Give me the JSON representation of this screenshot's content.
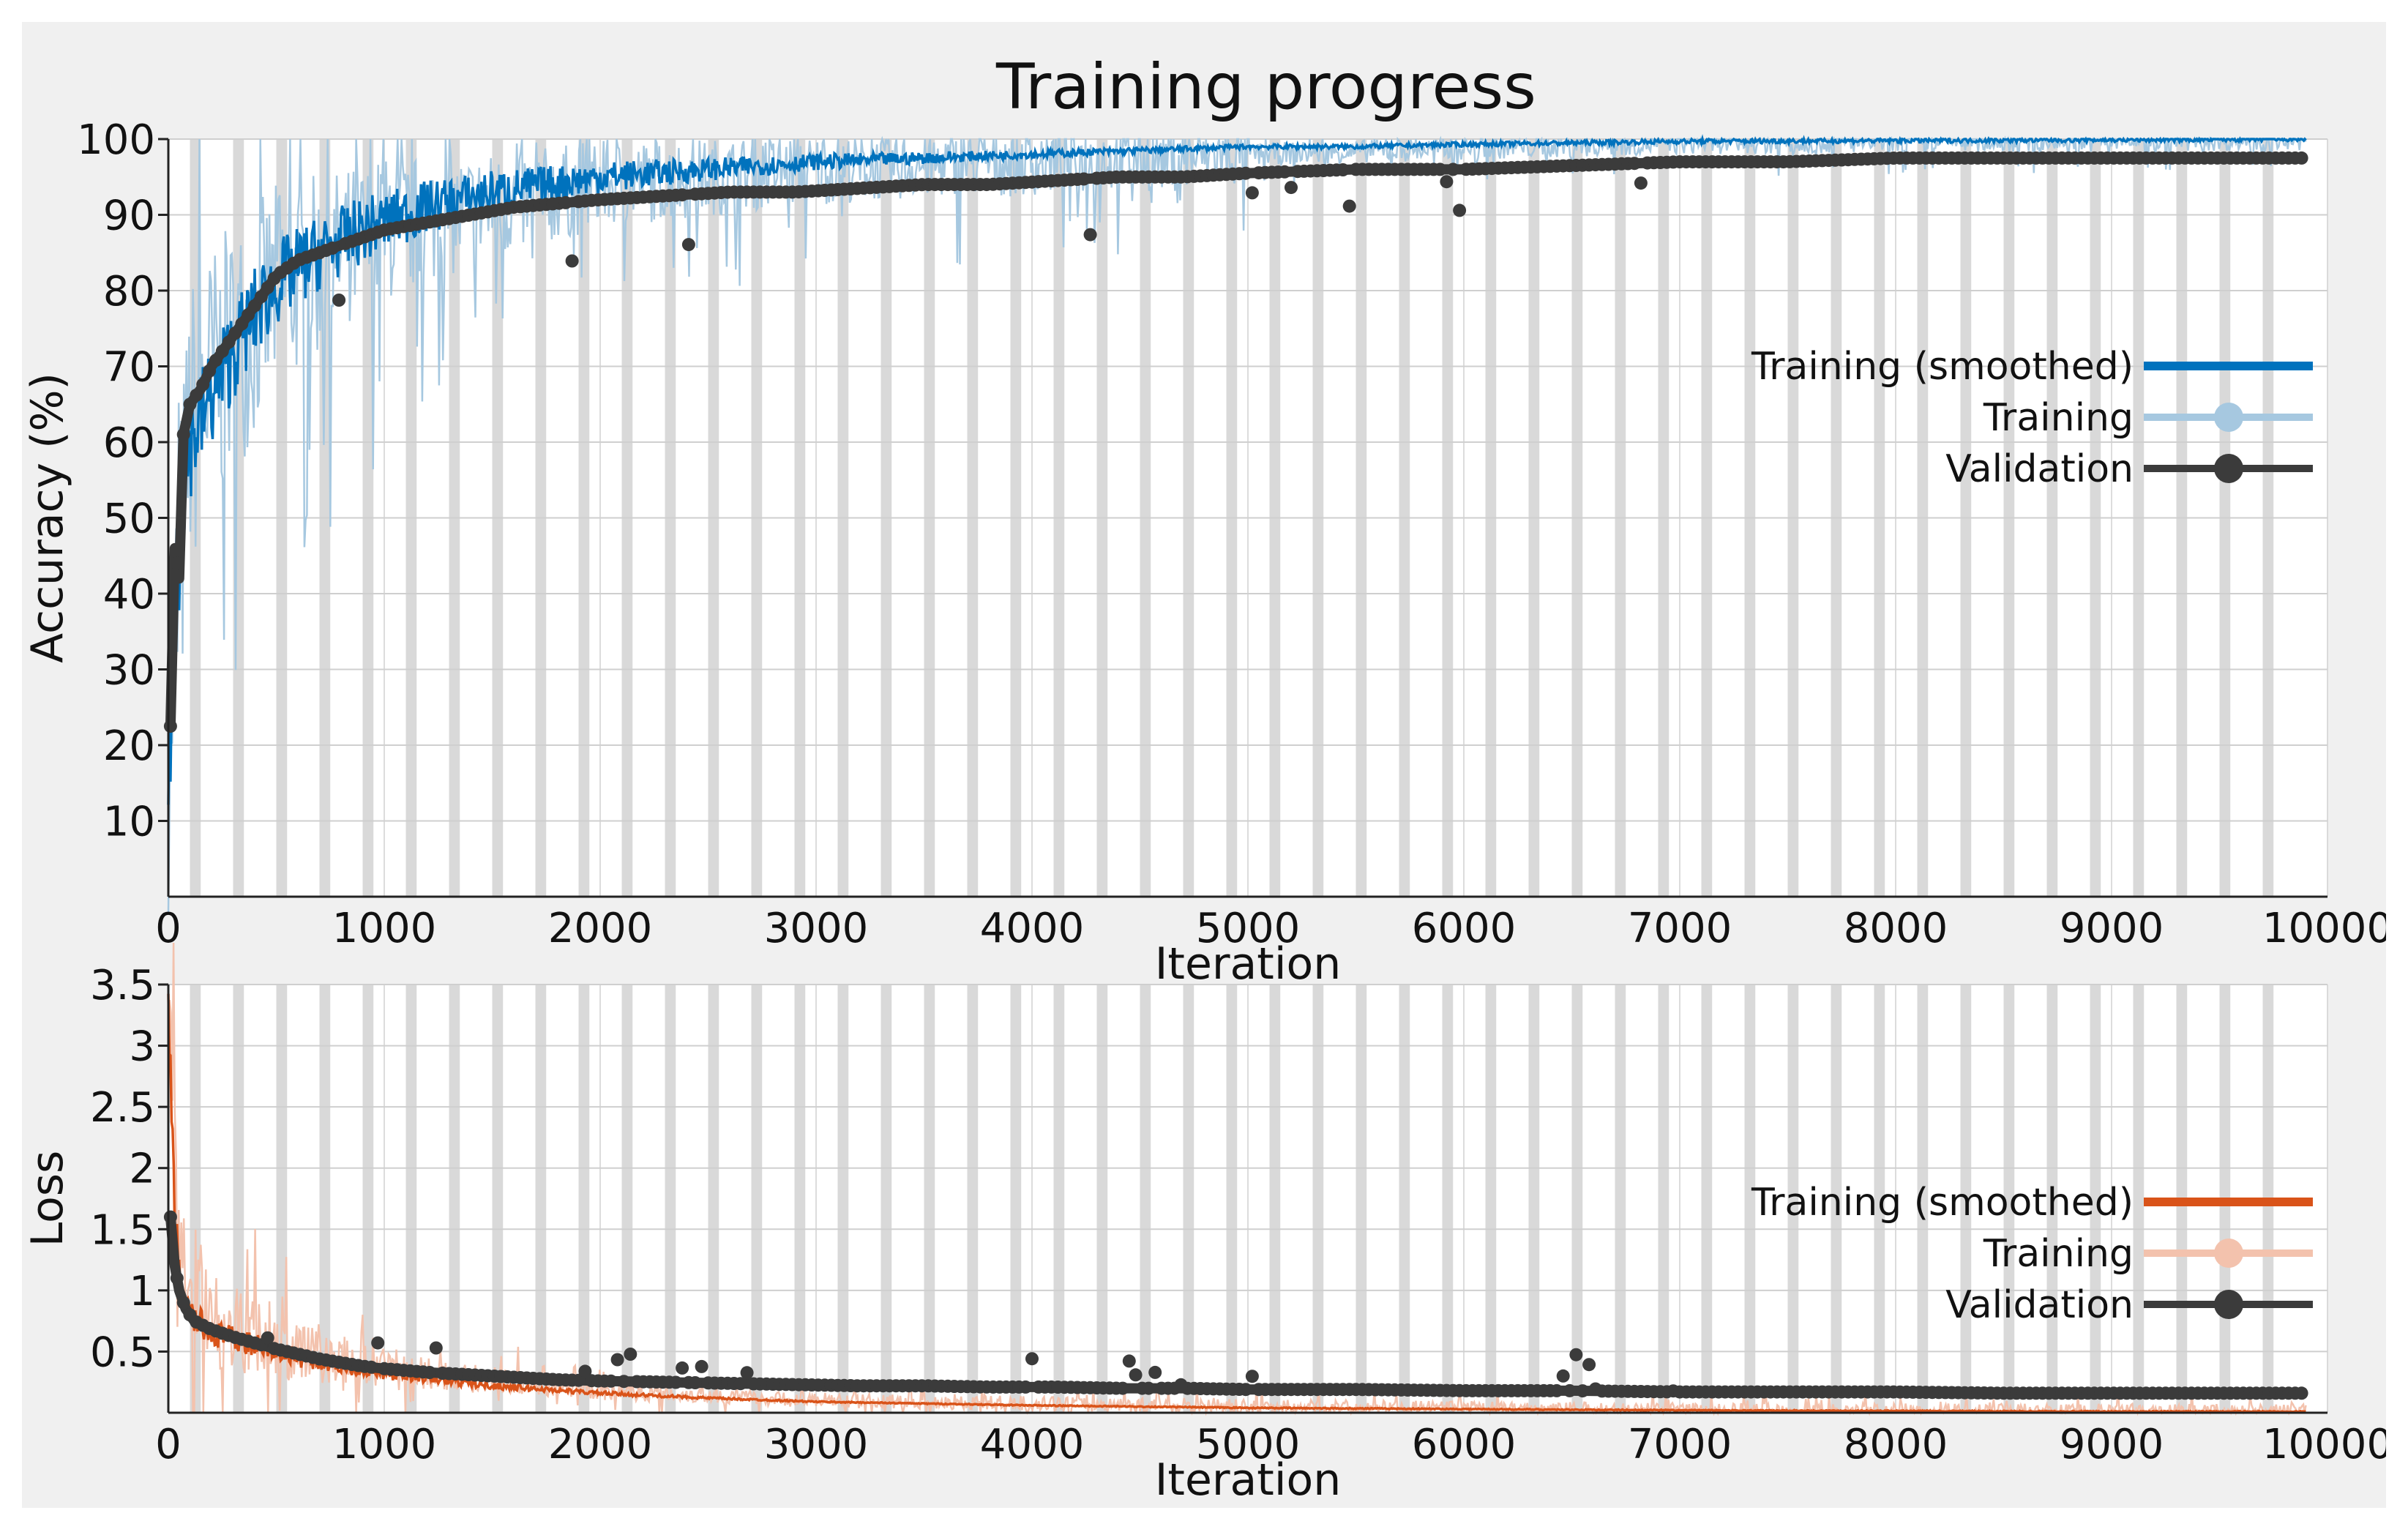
{
  "title": "Training progress",
  "colors": {
    "panel_bg": "#f0f0f0",
    "plot_bg": "#ffffff",
    "epoch_band": "#d9d9d9",
    "accuracy_smoothed": "#0072bd",
    "accuracy_raw": "#a6c8e0",
    "loss_smoothed": "#d95319",
    "loss_raw": "#f3c2ad",
    "validation": "#3b3b3b"
  },
  "chart_data": [
    {
      "type": "line",
      "name": "accuracy",
      "xlabel": "Iteration",
      "ylabel": "Accuracy (%)",
      "xlim": [
        0,
        10000
      ],
      "ylim": [
        0,
        100
      ],
      "x_ticks": [
        "0",
        "1000",
        "2000",
        "3000",
        "4000",
        "5000",
        "6000",
        "7000",
        "8000",
        "9000",
        "10000"
      ],
      "y_ticks": [
        "10",
        "20",
        "30",
        "40",
        "50",
        "60",
        "70",
        "80",
        "90",
        "100"
      ],
      "grid": true,
      "legend_position": "right",
      "legend": [
        {
          "label": "Training (smoothed)",
          "color": "#0072bd",
          "style": "line"
        },
        {
          "label": "Training",
          "color": "#a6c8e0",
          "style": "line-dot"
        },
        {
          "label": "Validation",
          "color": "#3b3b3b",
          "style": "line-dot"
        }
      ],
      "series": [
        {
          "name": "Training (smoothed)",
          "x": [
            0,
            30,
            60,
            100,
            150,
            200,
            300,
            400,
            500,
            700,
            900,
            1200,
            1500,
            2000,
            2500,
            3000,
            3500,
            4000,
            4500,
            5000,
            5500,
            6000,
            6500,
            7000,
            8000,
            9000,
            9900
          ],
          "values": [
            15,
            35,
            50,
            60,
            63,
            66,
            72,
            77,
            81,
            85,
            88,
            91,
            93,
            95,
            96,
            97,
            97.5,
            98,
            98.5,
            99,
            99,
            99.3,
            99.5,
            99.7,
            99.8,
            99.9,
            100
          ]
        },
        {
          "name": "Training",
          "x": [
            0,
            100,
            200,
            500,
            1000,
            2000,
            3000,
            5000,
            7000,
            9900
          ],
          "values": [
            20,
            62,
            68,
            80,
            88,
            94,
            96,
            98,
            99.5,
            100
          ]
        },
        {
          "name": "Validation",
          "x": [
            10,
            30,
            50,
            70,
            100,
            150,
            200,
            300,
            400,
            500,
            600,
            700,
            800,
            900,
            1000,
            1200,
            1400,
            1600,
            1800,
            2000,
            2300,
            2600,
            2900,
            3200,
            3500,
            3800,
            4100,
            4400,
            4700,
            5000,
            5500,
            6000,
            6500,
            7000,
            7500,
            8000,
            8500,
            9000,
            9500,
            9900
          ],
          "values": [
            22.5,
            46,
            42,
            61,
            65,
            67,
            70,
            74,
            78,
            82,
            84,
            85,
            86,
            87,
            88,
            89,
            90,
            91,
            91.5,
            92,
            92.5,
            93,
            93,
            93.5,
            94,
            94,
            94.5,
            95,
            95,
            95.5,
            96,
            96,
            96.5,
            97,
            97,
            97.5,
            97.5,
            97.5,
            97.5,
            97.5
          ]
        }
      ]
    },
    {
      "type": "line",
      "name": "loss",
      "xlabel": "Iteration",
      "ylabel": "Loss",
      "xlim": [
        0,
        10000
      ],
      "ylim": [
        0,
        3.5
      ],
      "x_ticks": [
        "0",
        "1000",
        "2000",
        "3000",
        "4000",
        "5000",
        "6000",
        "7000",
        "8000",
        "9000",
        "10000"
      ],
      "y_ticks": [
        "0.5",
        "1",
        "1.5",
        "2",
        "2.5",
        "3",
        "3.5"
      ],
      "grid": true,
      "legend_position": "right",
      "legend": [
        {
          "label": "Training (smoothed)",
          "color": "#d95319",
          "style": "line"
        },
        {
          "label": "Training",
          "color": "#f3c2ad",
          "style": "line-dot"
        },
        {
          "label": "Validation",
          "color": "#3b3b3b",
          "style": "line-dot"
        }
      ],
      "series": [
        {
          "name": "Training (smoothed)",
          "x": [
            0,
            10,
            30,
            60,
            100,
            200,
            400,
            600,
            800,
            1000,
            1500,
            2000,
            2500,
            3000,
            4000,
            5000,
            6000,
            7000,
            8000,
            9000,
            9900
          ],
          "values": [
            3.3,
            2.8,
            1.6,
            1.0,
            0.8,
            0.65,
            0.55,
            0.45,
            0.38,
            0.32,
            0.22,
            0.16,
            0.12,
            0.09,
            0.06,
            0.04,
            0.03,
            0.02,
            0.015,
            0.01,
            0.01
          ]
        },
        {
          "name": "Training",
          "x": [
            0,
            50,
            100,
            300,
            600,
            1000,
            2000,
            3000,
            5000,
            7000,
            9900
          ],
          "values": [
            3.4,
            1.4,
            0.9,
            0.7,
            0.5,
            0.35,
            0.18,
            0.1,
            0.05,
            0.02,
            0.01
          ]
        },
        {
          "name": "Validation",
          "x": [
            10,
            30,
            50,
            80,
            120,
            200,
            300,
            400,
            500,
            600,
            700,
            800,
            900,
            1000,
            1200,
            1400,
            1600,
            1800,
            2000,
            2300,
            2600,
            2900,
            3200,
            3500,
            3800,
            4100,
            4400,
            4700,
            5000,
            5500,
            6000,
            6500,
            7000,
            7500,
            8000,
            8500,
            9000,
            9500,
            9900
          ],
          "values": [
            1.6,
            1.2,
            1.0,
            0.85,
            0.75,
            0.68,
            0.62,
            0.57,
            0.52,
            0.48,
            0.44,
            0.41,
            0.38,
            0.36,
            0.33,
            0.31,
            0.29,
            0.27,
            0.26,
            0.25,
            0.24,
            0.23,
            0.22,
            0.22,
            0.21,
            0.21,
            0.2,
            0.2,
            0.19,
            0.19,
            0.18,
            0.18,
            0.17,
            0.17,
            0.17,
            0.16,
            0.16,
            0.16,
            0.16
          ]
        }
      ]
    }
  ]
}
